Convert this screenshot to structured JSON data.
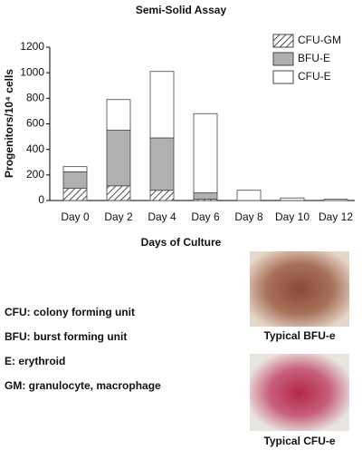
{
  "chart_data": {
    "type": "stacked_bar",
    "title": "Semi-Solid Assay",
    "x_label": "Days of Culture",
    "y_label": "Progenitors/10⁴ cells",
    "categories": [
      "Day 0",
      "Day 2",
      "Day 4",
      "Day 6",
      "Day 8",
      "Day 10",
      "Day 12"
    ],
    "series": [
      {
        "name": "CFU-GM",
        "color": "#ffffff",
        "hatch": true,
        "values": [
          95,
          115,
          80,
          10,
          0,
          0,
          0
        ]
      },
      {
        "name": "BFU-E",
        "color": "#b0b0b0",
        "hatch": false,
        "values": [
          130,
          435,
          410,
          50,
          0,
          0,
          0
        ]
      },
      {
        "name": "CFU-E",
        "color": "#ffffff",
        "hatch": false,
        "values": [
          40,
          240,
          520,
          620,
          80,
          20,
          10
        ]
      }
    ],
    "ylim": [
      0,
      1200
    ],
    "yticks": [
      0,
      200,
      400,
      600,
      800,
      1000,
      1200
    ],
    "grid": false,
    "legend": "top-right",
    "annotations": [
      "CFU: colony forming unit",
      "BFU: burst forming unit",
      "E: erythroid",
      "GM: granulocyte, macrophage"
    ],
    "image_captions": [
      "Typical BFU-e",
      "Typical CFU-e"
    ]
  }
}
